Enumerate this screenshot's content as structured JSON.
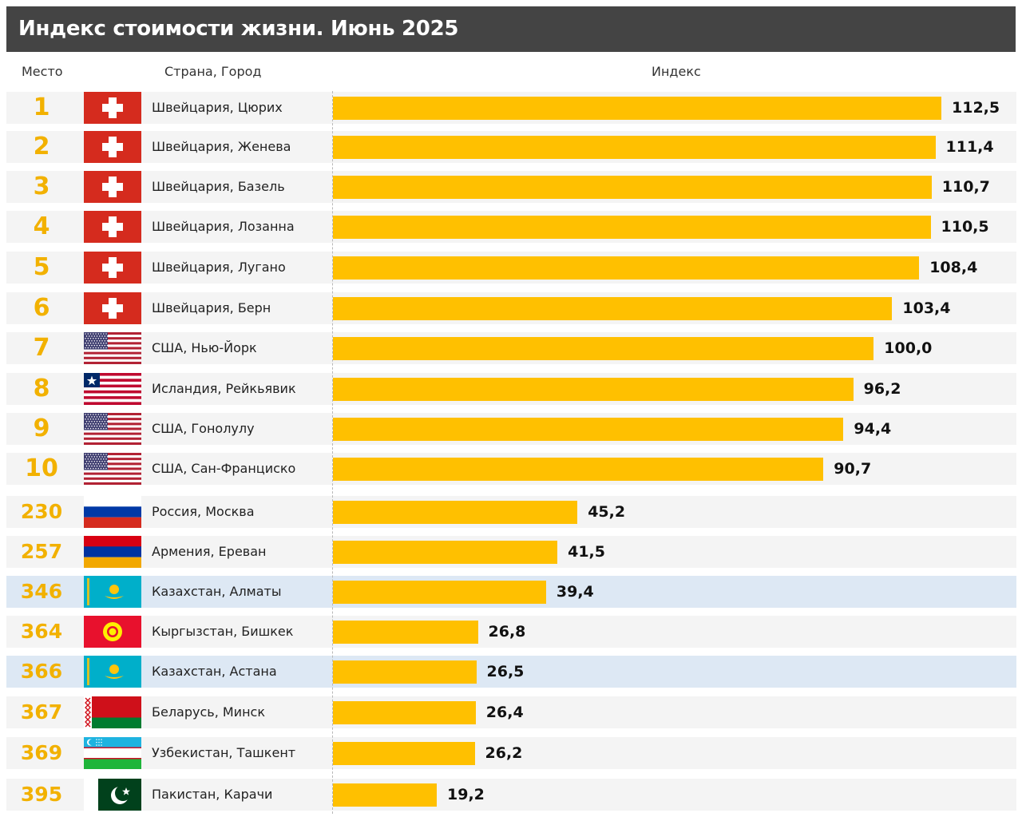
{
  "header": {
    "title": "Индекс стоимости жизни. Июнь 2025",
    "col_rank": "Место",
    "col_city": "Страна, Город",
    "col_index": "Индекс"
  },
  "colors": {
    "bar": "#ffc000",
    "rank": "#f2b100",
    "title_bg": "#444444",
    "row_bg": "#f4f4f4",
    "row_highlight": "#dde8f4"
  },
  "chart_data": {
    "type": "bar",
    "orientation": "horizontal",
    "title": "Индекс стоимости жизни. Июнь 2025",
    "xlabel": "Индекс",
    "xlim": [
      0,
      112.5
    ],
    "grid": false,
    "legend": "none",
    "rows": [
      {
        "rank": "1",
        "city": "Швейцария, Цюрих",
        "value": 112.5,
        "label": "112,5",
        "flag": "switzerland",
        "highlight": false
      },
      {
        "rank": "2",
        "city": "Швейцария, Женева",
        "value": 111.4,
        "label": "111,4",
        "flag": "switzerland",
        "highlight": false
      },
      {
        "rank": "3",
        "city": "Швейцария, Базель",
        "value": 110.7,
        "label": "110,7",
        "flag": "switzerland",
        "highlight": false
      },
      {
        "rank": "4",
        "city": "Швейцария, Лозанна",
        "value": 110.5,
        "label": "110,5",
        "flag": "switzerland",
        "highlight": false
      },
      {
        "rank": "5",
        "city": "Швейцария, Лугано",
        "value": 108.4,
        "label": "108,4",
        "flag": "switzerland",
        "highlight": false
      },
      {
        "rank": "6",
        "city": "Швейцария, Берн",
        "value": 103.4,
        "label": "103,4",
        "flag": "switzerland",
        "highlight": false
      },
      {
        "rank": "7",
        "city": "США, Нью-Йорк",
        "value": 100.0,
        "label": "100,0",
        "flag": "usa",
        "highlight": false
      },
      {
        "rank": "8",
        "city": "Исландия, Рейкьявик",
        "value": 96.2,
        "label": "96,2",
        "flag": "liberia",
        "highlight": false
      },
      {
        "rank": "9",
        "city": "США, Гонолулу",
        "value": 94.4,
        "label": "94,4",
        "flag": "usa",
        "highlight": false
      },
      {
        "rank": "10",
        "city": "США, Сан-Франциско",
        "value": 90.7,
        "label": "90,7",
        "flag": "usa",
        "highlight": false
      },
      {
        "rank": "230",
        "city": "Россия, Москва",
        "value": 45.2,
        "label": "45,2",
        "flag": "russia",
        "highlight": false
      },
      {
        "rank": "257",
        "city": "Армения, Ереван",
        "value": 41.5,
        "label": "41,5",
        "flag": "armenia",
        "highlight": false
      },
      {
        "rank": "346",
        "city": "Казахстан, Алматы",
        "value": 39.4,
        "label": "39,4",
        "flag": "kazakhstan",
        "highlight": true
      },
      {
        "rank": "364",
        "city": "Кыргызстан, Бишкек",
        "value": 26.8,
        "label": "26,8",
        "flag": "kyrgyzstan",
        "highlight": false
      },
      {
        "rank": "366",
        "city": "Казахстан, Астана",
        "value": 26.5,
        "label": "26,5",
        "flag": "kazakhstan",
        "highlight": true
      },
      {
        "rank": "367",
        "city": "Беларусь, Минск",
        "value": 26.4,
        "label": "26,4",
        "flag": "belarus",
        "highlight": false
      },
      {
        "rank": "369",
        "city": "Узбекистан, Ташкент",
        "value": 26.2,
        "label": "26,2",
        "flag": "uzbekistan",
        "highlight": false
      },
      {
        "rank": "395",
        "city": "Пакистан, Карачи",
        "value": 19.2,
        "label": "19,2",
        "flag": "pakistan",
        "highlight": false
      }
    ]
  }
}
